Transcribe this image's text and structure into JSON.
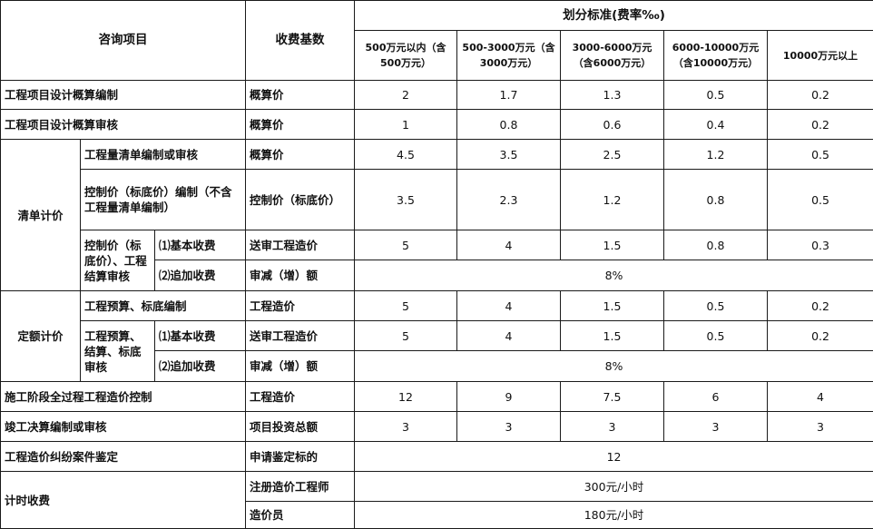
{
  "header": {
    "item": "咨询项目",
    "base": "收费基数",
    "standard": "划分标准(费率‰)",
    "ranges": [
      "500万元以内（含500万元）",
      "500-3000万元（含3000万元）",
      "3000-6000万元（含6000万元）",
      "6000-10000万元（含10000万元）",
      "10000万元以上"
    ]
  },
  "rows": [
    {
      "cells": [
        "工程项目设计概算编制",
        "概算价",
        "2",
        "1.7",
        "1.3",
        "0.5",
        "0.2"
      ]
    },
    {
      "cells": [
        "工程项目设计概算审核",
        "概算价",
        "1",
        "0.8",
        "0.6",
        "0.4",
        "0.2"
      ]
    },
    {
      "cells": [
        "清单计价",
        "工程量清单编制或审核",
        "概算价",
        "4.5",
        "3.5",
        "2.5",
        "1.2",
        "0.5"
      ]
    },
    {
      "cells": [
        "控制价（标底价）编制（不含工程量清单编制）",
        "控制价（标底价）",
        "3.5",
        "2.3",
        "1.2",
        "0.8",
        "0.5"
      ]
    },
    {
      "cells": [
        "控制价（标底价）、工程结算审核",
        "⑴基本收费",
        "送审工程造价",
        "5",
        "4",
        "1.5",
        "0.8",
        "0.3"
      ]
    },
    {
      "cells": [
        "⑵追加收费",
        "审减（增）额",
        "8%"
      ]
    },
    {
      "cells": [
        "定额计价",
        "工程预算、标底编制",
        "工程造价",
        "5",
        "4",
        "1.5",
        "0.5",
        "0.2"
      ]
    },
    {
      "cells": [
        "工程预算、结算、标底审核",
        "⑴基本收费",
        "送审工程造价",
        "5",
        "4",
        "1.5",
        "0.5",
        "0.2"
      ]
    },
    {
      "cells": [
        "⑵追加收费",
        "审减（增）额",
        "8%"
      ]
    },
    {
      "cells": [
        "施工阶段全过程工程造价控制",
        "工程造价",
        "12",
        "9",
        "7.5",
        "6",
        "4"
      ]
    },
    {
      "cells": [
        "竣工决算编制或审核",
        "项目投资总额",
        "3",
        "3",
        "3",
        "3",
        "3"
      ]
    },
    {
      "cells": [
        "工程造价纠纷案件鉴定",
        "申请鉴定标的",
        "12"
      ]
    },
    {
      "cells": [
        "计时收费",
        "注册造价工程师",
        "300元/小时"
      ]
    },
    {
      "cells": [
        "造价员",
        "180元/小时"
      ]
    }
  ]
}
